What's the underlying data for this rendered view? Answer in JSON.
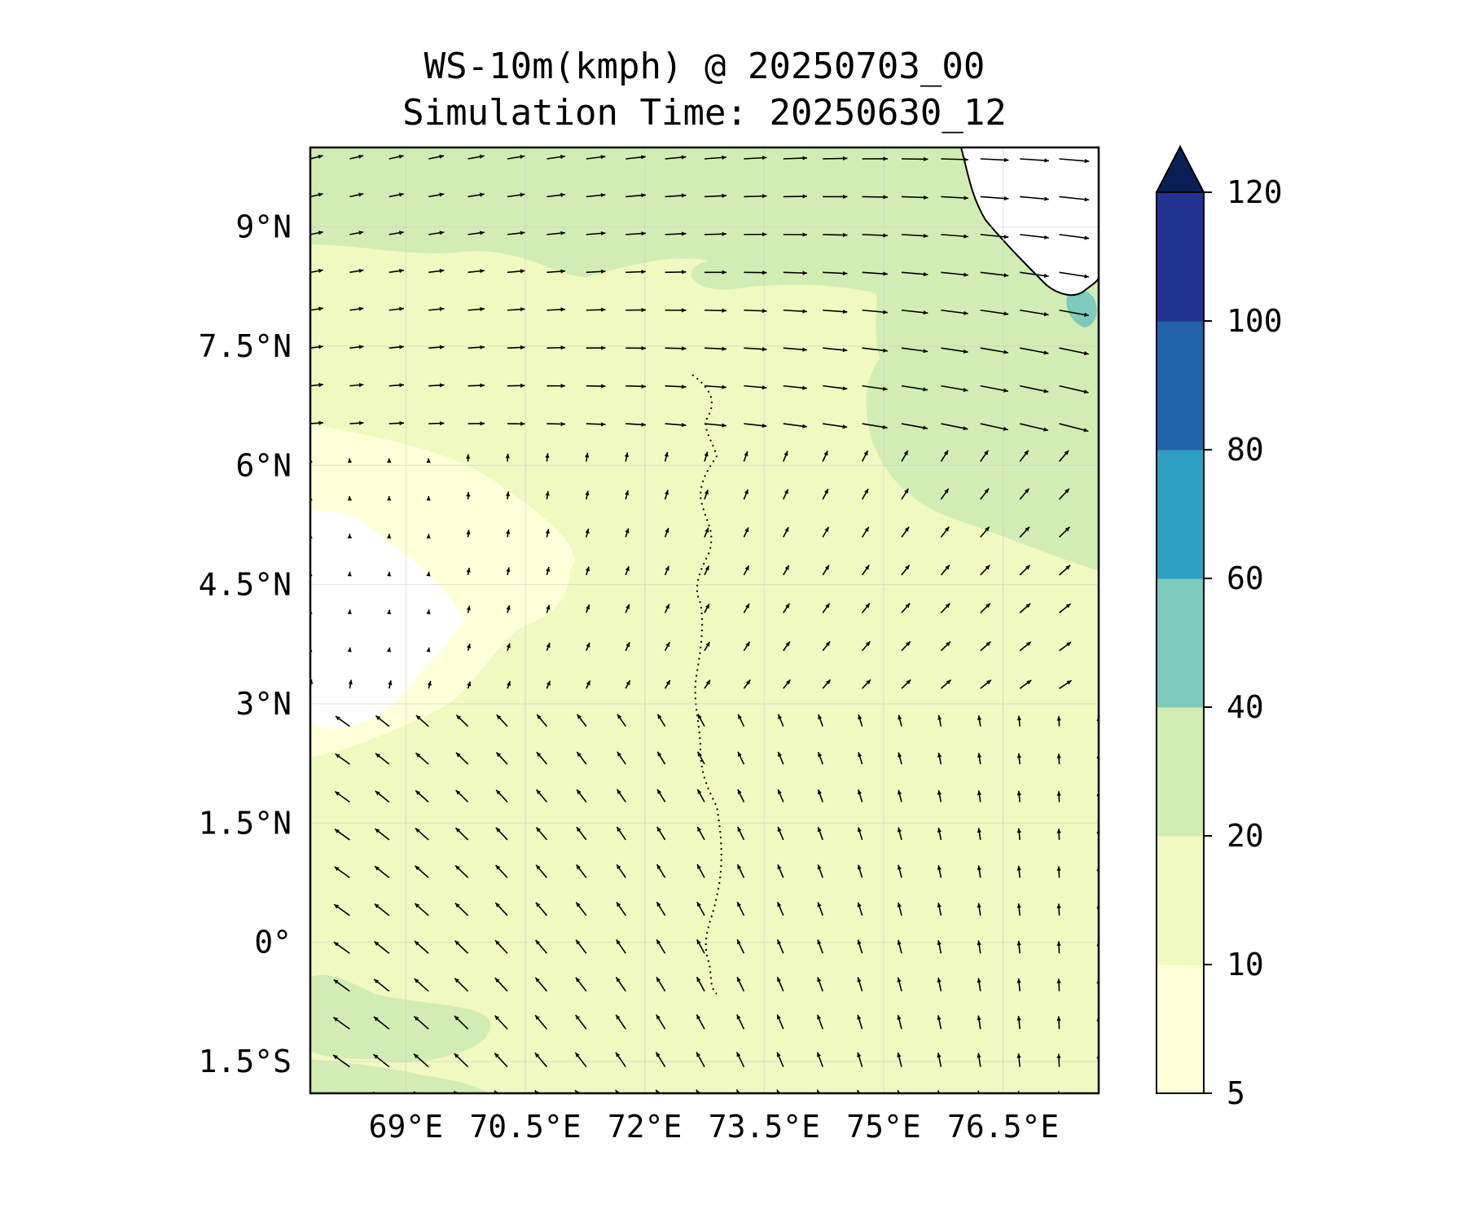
{
  "title": {
    "line1": "WS-10m(kmph) @ 20250703_00",
    "line2": "Simulation Time: 20250630_12"
  },
  "map": {
    "lon_range": [
      67.8,
      77.7
    ],
    "lat_range": [
      -1.9,
      10.0
    ],
    "lon_ticks": [
      {
        "value": 69.0,
        "label": "69°E"
      },
      {
        "value": 70.5,
        "label": "70.5°E"
      },
      {
        "value": 72.0,
        "label": "72°E"
      },
      {
        "value": 73.5,
        "label": "73.5°E"
      },
      {
        "value": 75.0,
        "label": "75°E"
      },
      {
        "value": 76.5,
        "label": "76.5°E"
      }
    ],
    "lat_ticks": [
      {
        "value": 9.0,
        "label": "9°N"
      },
      {
        "value": 7.5,
        "label": "7.5°N"
      },
      {
        "value": 6.0,
        "label": "6°N"
      },
      {
        "value": 4.5,
        "label": "4.5°N"
      },
      {
        "value": 3.0,
        "label": "3°N"
      },
      {
        "value": 1.5,
        "label": "1.5°N"
      },
      {
        "value": 0.0,
        "label": "0°"
      },
      {
        "value": -1.5,
        "label": "1.5°S"
      }
    ],
    "gridlines": true
  },
  "colorbar": {
    "levels": [
      {
        "label": "5",
        "color": "#ffffd9"
      },
      {
        "label": "10",
        "color": "#f0f9c0"
      },
      {
        "label": "20",
        "color": "#d2edb4"
      },
      {
        "label": "40",
        "color": "#7ccbbc"
      },
      {
        "label": "60",
        "color": "#2da0c3"
      },
      {
        "label": "80",
        "color": "#2163aa"
      },
      {
        "label": "100",
        "color": "#233393"
      },
      {
        "label": "120",
        "color": null
      }
    ],
    "extend_color": "#0b1f57"
  }
}
